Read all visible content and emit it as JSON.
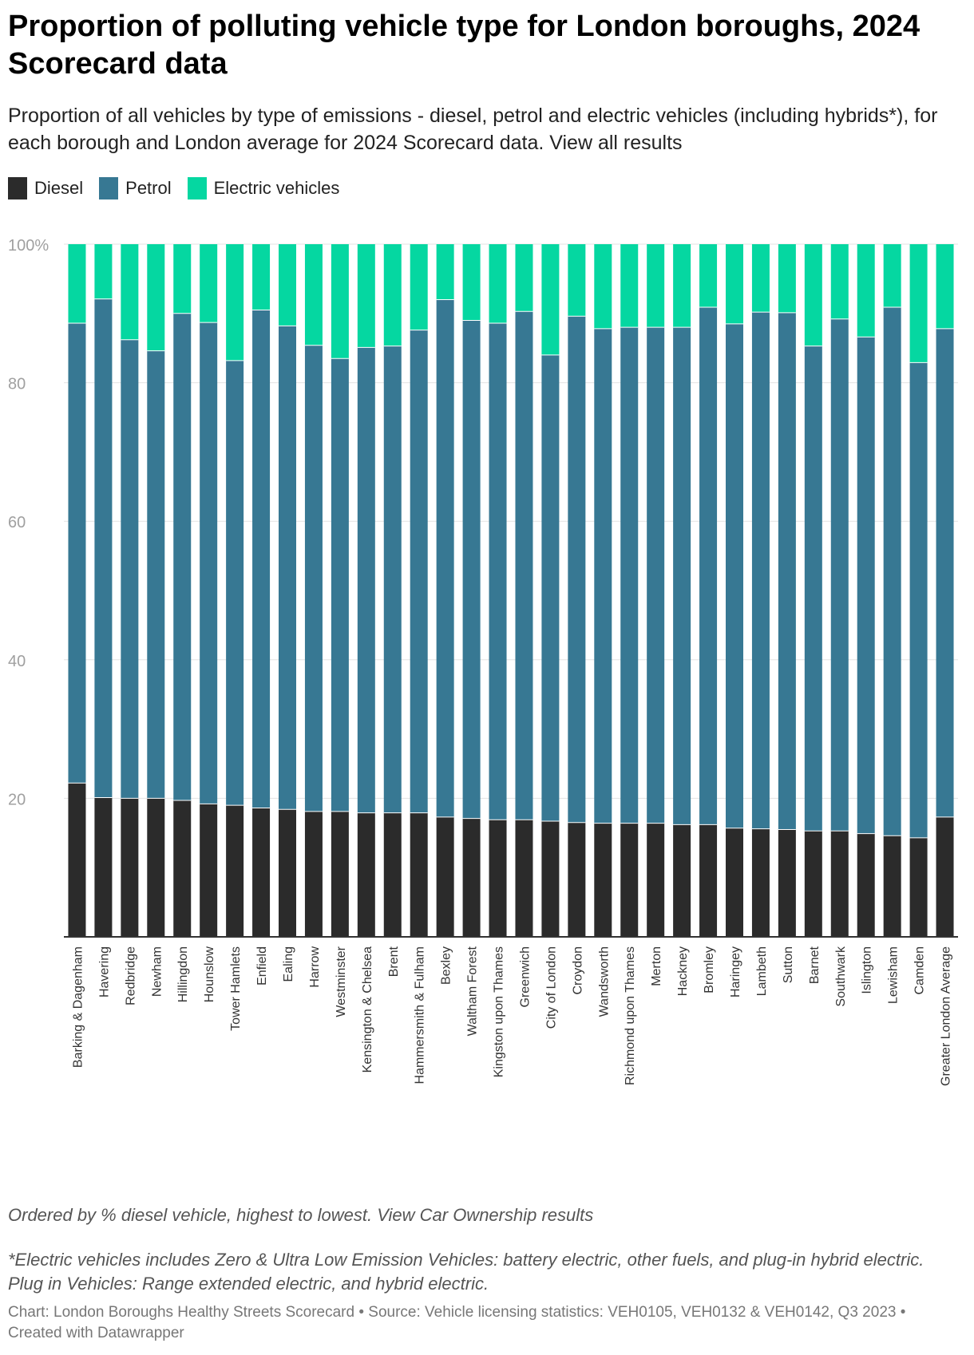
{
  "header": {
    "title": "Proportion of polluting vehicle type for London boroughs, 2024 Scorecard data",
    "subtitle": "Proportion of all vehicles by type of emissions - diesel, petrol and electric vehicles (including hybrids*), for each borough and London average for 2024 Scorecard data. View all results"
  },
  "footer": {
    "note": "Ordered by % diesel vehicle, highest to lowest. View Car Ownership results",
    "footnote": "*Electric vehicles includes Zero & Ultra Low Emission Vehicles: battery electric, other fuels, and plug-in hybrid electric. Plug in Vehicles: Range extended electric, and hybrid electric.",
    "credit": "Chart: London Boroughs Healthy Streets Scorecard • Source: Vehicle licensing statistics: VEH0105, VEH0132 & VEH0142, Q3 2023 • Created with Datawrapper"
  },
  "chart_data": {
    "type": "bar",
    "stacked": true,
    "orientation": "vertical",
    "title": "Proportion of polluting vehicle type for London boroughs, 2024 Scorecard data",
    "xlabel": "",
    "ylabel": "",
    "ylim": [
      0,
      100
    ],
    "yticks": [
      20,
      40,
      60,
      80,
      100
    ],
    "ytick_labels": [
      "20",
      "40",
      "60",
      "80",
      "100%"
    ],
    "grid": true,
    "legend_position": "top-left",
    "categories": [
      "Barking & Dagenham",
      "Havering",
      "Redbridge",
      "Newham",
      "Hillingdon",
      "Hounslow",
      "Tower Hamlets",
      "Enfield",
      "Ealing",
      "Harrow",
      "Westminster",
      "Kensington & Chelsea",
      "Brent",
      "Hammersmith & Fulham",
      "Bexley",
      "Waltham Forest",
      "Kingston upon Thames",
      "Greenwich",
      "City of London",
      "Croydon",
      "Wandsworth",
      "Richmond upon Thames",
      "Merton",
      "Hackney",
      "Bromley",
      "Haringey",
      "Lambeth",
      "Sutton",
      "Barnet",
      "Southwark",
      "Islington",
      "Lewisham",
      "Camden",
      "Greater London Average"
    ],
    "series": [
      {
        "name": "Diesel",
        "color": "#2b2b2b",
        "values": [
          22.2,
          20.1,
          20.0,
          20.0,
          19.7,
          19.2,
          19.0,
          18.6,
          18.4,
          18.1,
          18.1,
          17.9,
          17.9,
          17.9,
          17.3,
          17.1,
          16.9,
          16.9,
          16.7,
          16.5,
          16.4,
          16.4,
          16.4,
          16.2,
          16.2,
          15.7,
          15.6,
          15.5,
          15.3,
          15.3,
          14.9,
          14.6,
          14.3,
          17.3
        ]
      },
      {
        "name": "Petrol",
        "color": "#377893",
        "values": [
          66.4,
          72.0,
          66.2,
          64.6,
          70.3,
          69.5,
          64.2,
          71.9,
          69.8,
          67.3,
          65.4,
          67.2,
          67.4,
          69.7,
          74.7,
          71.9,
          71.7,
          73.4,
          67.3,
          73.1,
          71.4,
          71.6,
          71.6,
          71.8,
          74.7,
          72.8,
          74.6,
          74.6,
          70.0,
          73.9,
          71.7,
          76.3,
          68.6,
          70.5
        ]
      },
      {
        "name": "Electric vehicles",
        "color": "#05d7a1",
        "values": [
          11.4,
          7.9,
          13.8,
          15.4,
          10.0,
          11.3,
          16.8,
          9.5,
          11.8,
          14.6,
          16.5,
          14.9,
          14.7,
          12.4,
          8.0,
          11.0,
          11.4,
          9.7,
          16.0,
          10.4,
          12.2,
          12.0,
          12.0,
          12.0,
          9.1,
          11.5,
          9.8,
          9.9,
          14.7,
          10.8,
          13.4,
          9.1,
          17.1,
          12.2
        ]
      }
    ]
  }
}
